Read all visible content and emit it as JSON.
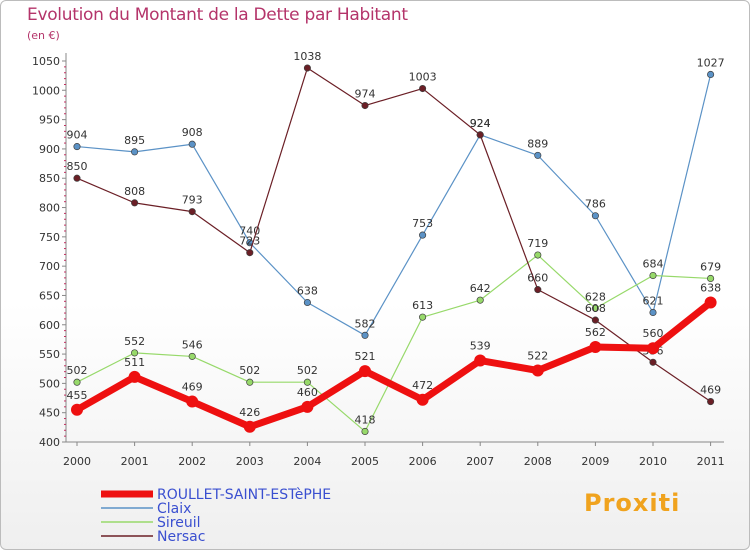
{
  "header": {
    "title": "Evolution du Montant de la Dette par Habitant",
    "unit": "(en €)"
  },
  "brand": {
    "text": "Proxiti",
    "color": "#f0a31e"
  },
  "chart_data": {
    "type": "line",
    "title": "Evolution du Montant de la Dette par Habitant",
    "ylabel": "(en €)",
    "xlabel": "",
    "x": [
      "2000",
      "2001",
      "2002",
      "2003",
      "2004",
      "2005",
      "2006",
      "2007",
      "2008",
      "2009",
      "2010",
      "2011"
    ],
    "ylim": [
      400,
      1050
    ],
    "yticks": [
      400,
      450,
      500,
      550,
      600,
      650,
      700,
      750,
      800,
      850,
      900,
      950,
      1000,
      1050
    ],
    "grid": false,
    "legend": "bottom-left",
    "series": [
      {
        "name": "Claix",
        "color": "#5b92c6",
        "width": 1.2,
        "values": [
          904,
          895,
          908,
          740,
          638,
          582,
          753,
          924,
          889,
          786,
          621,
          1027
        ]
      },
      {
        "name": "Sireuil",
        "color": "#97d96a",
        "width": 1.2,
        "values": [
          502,
          552,
          546,
          502,
          502,
          418,
          613,
          642,
          719,
          628,
          684,
          679
        ]
      },
      {
        "name": "Nersac",
        "color": "#6b1f26",
        "width": 1.2,
        "values": [
          850,
          808,
          793,
          723,
          1038,
          974,
          1003,
          924,
          660,
          608,
          536,
          469
        ]
      },
      {
        "name": "ROULLET-SAINT-ESTèPHE",
        "color": "#ee1010",
        "width": 7,
        "values": [
          455,
          511,
          469,
          426,
          460,
          521,
          472,
          539,
          522,
          562,
          560,
          638
        ]
      }
    ],
    "legend_order": [
      "ROULLET-SAINT-ESTèPHE",
      "Claix",
      "Sireuil",
      "Nersac"
    ]
  }
}
